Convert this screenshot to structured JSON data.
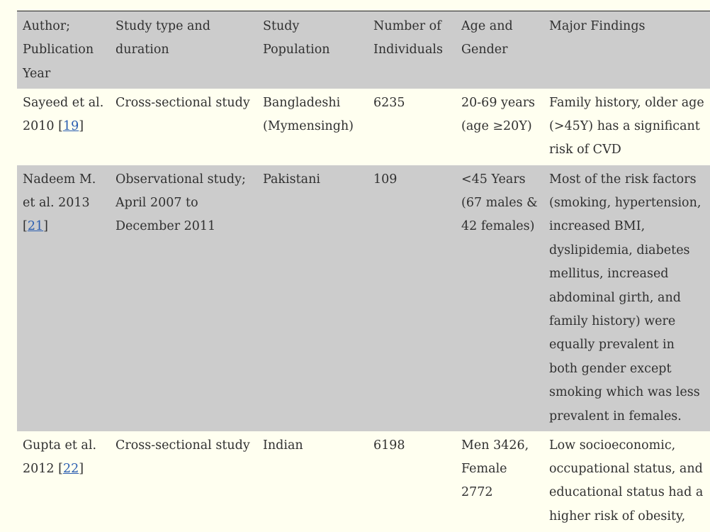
{
  "table": {
    "headers": [
      "Author; Publication Year",
      "Study type and duration",
      "Study Population",
      "Number of Individuals",
      "Age and Gender",
      "Major Findings"
    ],
    "rows": [
      {
        "author": "Sayeed et al. 2010",
        "ref": "19",
        "study_type": "Cross-sectional study",
        "population": "Bangladeshi (Mymensingh)",
        "individuals": "6235",
        "age_gender": "20-69 years (age ≥20Y)",
        "findings": "Family history, older age (>45Y) has a significant risk of CVD"
      },
      {
        "author": "Nadeem M. et al. 2013",
        "ref": "21",
        "study_type": "Observational study; April 2007 to December 2011",
        "population": "Pakistani",
        "individuals": "109",
        "age_gender": "<45 Years (67 males & 42 females)",
        "findings": "Most of the risk factors (smoking, hypertension, increased BMI, dyslipidemia, diabetes mellitus, increased abdominal girth, and family history) were equally prevalent in both gender except smoking which was less prevalent in females."
      },
      {
        "author": "Gupta et al. 2012",
        "ref": "22",
        "study_type": "Cross-sectional study",
        "population": "Indian",
        "individuals": "6198",
        "age_gender": "Men 3426, Female 2772",
        "findings": "Low socioeconomic, occupational status, and educational status had a higher risk of obesity,"
      }
    ]
  }
}
